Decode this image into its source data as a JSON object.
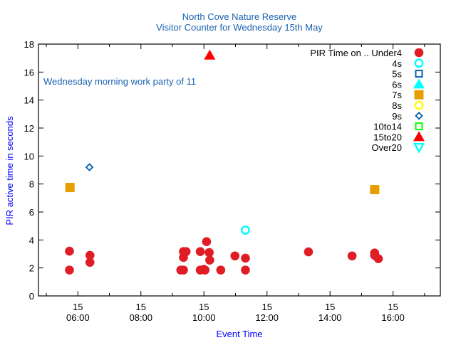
{
  "chart_data": {
    "type": "scatter",
    "title": "North Cove Nature Reserve",
    "subtitle": "Visitor Counter for Wednesday 15th May",
    "xlabel": "Event Time",
    "ylabel": "PIR active time in seconds",
    "annotation": "Wednesday morning work party of 11",
    "xlim": [
      "04:45",
      "17:30"
    ],
    "ylim": [
      0,
      18
    ],
    "x_major_ticks": [
      {
        "day": "15",
        "time": "06:00"
      },
      {
        "day": "15",
        "time": "08:00"
      },
      {
        "day": "15",
        "time": "10:00"
      },
      {
        "day": "15",
        "time": "12:00"
      },
      {
        "day": "15",
        "time": "14:00"
      },
      {
        "day": "15",
        "time": "16:00"
      }
    ],
    "x_minor_ticks": [
      "05:00",
      "07:00",
      "09:00",
      "11:00",
      "13:00",
      "15:00",
      "17:00"
    ],
    "y_ticks": [
      "0",
      "2",
      "4",
      "6",
      "8",
      "10",
      "12",
      "14",
      "16",
      "18"
    ],
    "grid": false,
    "legend_placement": "top-right",
    "legend_title": "PIR Time on ..",
    "series": [
      {
        "name": "Under4",
        "marker": "circle-filled",
        "color": "#e01c24",
        "points": [
          [
            "05:44",
            3.2
          ],
          [
            "05:44",
            1.85
          ],
          [
            "06:23",
            2.9
          ],
          [
            "06:23",
            2.4
          ],
          [
            "09:16",
            1.85
          ],
          [
            "09:21",
            1.85
          ],
          [
            "09:21",
            2.75
          ],
          [
            "09:21",
            3.17
          ],
          [
            "09:26",
            3.17
          ],
          [
            "09:53",
            3.17
          ],
          [
            "09:53",
            1.85
          ],
          [
            "10:00",
            1.9
          ],
          [
            "10:02",
            1.85
          ],
          [
            "10:05",
            3.88
          ],
          [
            "10:10",
            3.1
          ],
          [
            "10:11",
            2.56
          ],
          [
            "10:32",
            1.85
          ],
          [
            "10:59",
            2.86
          ],
          [
            "11:19",
            2.7
          ],
          [
            "11:19",
            1.85
          ],
          [
            "13:19",
            3.15
          ],
          [
            "14:42",
            2.86
          ],
          [
            "15:25",
            3.07
          ],
          [
            "15:25",
            2.9
          ],
          [
            "15:32",
            2.66
          ]
        ]
      },
      {
        "name": "4s",
        "marker": "circle-open",
        "color": "#00ffff",
        "points": [
          [
            "11:19",
            4.7
          ]
        ]
      },
      {
        "name": "5s",
        "marker": "square-open",
        "color": "#0060ad",
        "points": []
      },
      {
        "name": "6s",
        "marker": "triangle-filled",
        "color": "#00ffff",
        "points": []
      },
      {
        "name": "7s",
        "marker": "square-filled",
        "color": "#e69f00",
        "points": [
          [
            "05:45",
            7.75
          ],
          [
            "15:25",
            7.6
          ]
        ]
      },
      {
        "name": "8s",
        "marker": "circle-open",
        "color": "#ffff00",
        "points": []
      },
      {
        "name": "9s",
        "marker": "diamond-open",
        "color": "#0060ad",
        "points": [
          [
            "06:22",
            9.2
          ]
        ]
      },
      {
        "name": "10to14",
        "marker": "square-open",
        "color": "#00ff00",
        "points": []
      },
      {
        "name": "15to20",
        "marker": "triangle-filled",
        "color": "#ff0000",
        "points": [
          [
            "10:11",
            17.2
          ]
        ]
      },
      {
        "name": "Over20",
        "marker": "triangle-down-open",
        "color": "#00ffff",
        "points": []
      }
    ]
  },
  "colors": {
    "title": "#1a62b0",
    "axis_label": "#0000ff",
    "annotation": "#1a62b0"
  }
}
